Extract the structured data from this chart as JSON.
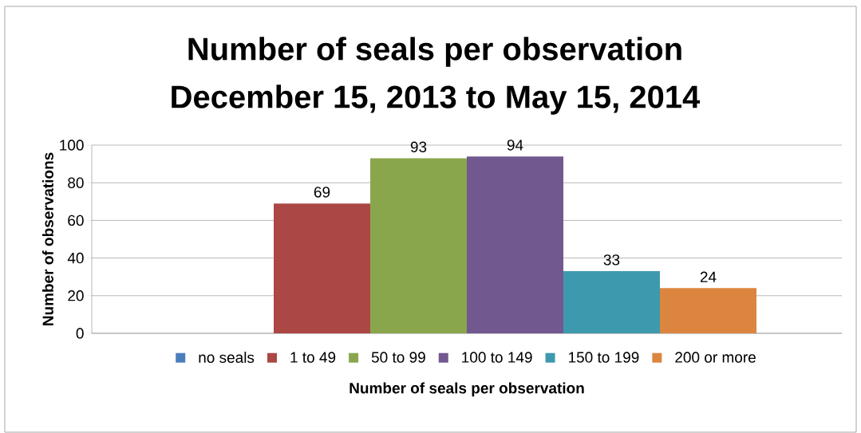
{
  "chart_data": {
    "type": "bar",
    "title": "Number of seals per observation\nDecember 15, 2013 to May 15, 2014",
    "xlabel": "Number of seals per observation",
    "ylabel": "Number of observations",
    "categories": [
      null
    ],
    "series": [
      {
        "name": "no seals",
        "color": "#4a7ebb",
        "values": [
          null
        ]
      },
      {
        "name": "1 to 49",
        "color": "#ab4744",
        "values": [
          69
        ]
      },
      {
        "name": "50 to 99",
        "color": "#8aa64d",
        "values": [
          93
        ]
      },
      {
        "name": "100 to 149",
        "color": "#71598f",
        "values": [
          94
        ]
      },
      {
        "name": "150 to 199",
        "color": "#3d99ae",
        "values": [
          33
        ]
      },
      {
        "name": "200 or more",
        "color": "#dc853f",
        "values": [
          24
        ]
      }
    ],
    "ylim": [
      0,
      100
    ],
    "yticks": [
      0,
      20,
      40,
      60,
      80,
      100
    ],
    "grid": "y",
    "legend": "bottom",
    "data_labels": true
  }
}
